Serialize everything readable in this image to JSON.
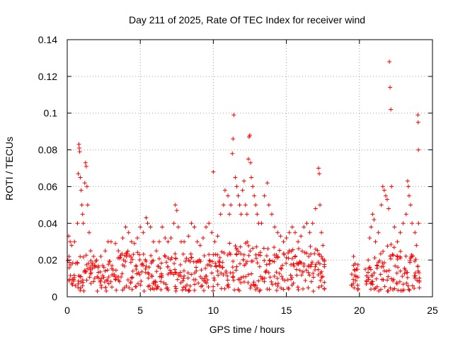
{
  "chart_data": {
    "type": "scatter",
    "title": "Day 211 of 2025, Rate Of TEC Index for receiver wind",
    "xlabel": "GPS time / hours",
    "ylabel": "ROTI / TECUs",
    "xlim": [
      0,
      25
    ],
    "ylim": [
      0,
      0.14
    ],
    "xticks": [
      0,
      5,
      10,
      15,
      20,
      25
    ],
    "xtick_labels": [
      "0",
      "5",
      "10",
      "15",
      "20",
      "25"
    ],
    "yticks": [
      0,
      0.02,
      0.04,
      0.06,
      0.08,
      0.1,
      0.12,
      0.14
    ],
    "ytick_labels": [
      "0",
      "0.02",
      "0.04",
      "0.06",
      "0.08",
      "0.1",
      "0.12",
      "0.14"
    ],
    "grid": true,
    "marker": "plus",
    "color": "#ff0000",
    "series": [
      {
        "points": [
          [
            0.1,
            0.033
          ],
          [
            0.2,
            0.03
          ],
          [
            0.3,
            0.028
          ],
          [
            0.5,
            0.03
          ],
          [
            0.7,
            0.04
          ],
          [
            0.75,
            0.067
          ],
          [
            0.8,
            0.083
          ],
          [
            0.82,
            0.081
          ],
          [
            0.85,
            0.079
          ],
          [
            0.9,
            0.065
          ],
          [
            0.95,
            0.058
          ],
          [
            1.0,
            0.05
          ],
          [
            1.05,
            0.045
          ],
          [
            1.1,
            0.04
          ],
          [
            1.2,
            0.062
          ],
          [
            1.25,
            0.073
          ],
          [
            1.3,
            0.071
          ],
          [
            1.35,
            0.06
          ],
          [
            1.4,
            0.05
          ],
          [
            1.5,
            0.035
          ],
          [
            1.6,
            0.025
          ],
          [
            1.8,
            0.022
          ],
          [
            2.0,
            0.02
          ],
          [
            2.3,
            0.022
          ],
          [
            2.6,
            0.025
          ],
          [
            2.8,
            0.03
          ],
          [
            3.0,
            0.03
          ],
          [
            3.3,
            0.029
          ],
          [
            3.5,
            0.025
          ],
          [
            3.8,
            0.032
          ],
          [
            4.0,
            0.038
          ],
          [
            4.2,
            0.035
          ],
          [
            4.4,
            0.03
          ],
          [
            4.6,
            0.029
          ],
          [
            4.8,
            0.032
          ],
          [
            5.0,
            0.038
          ],
          [
            5.2,
            0.035
          ],
          [
            5.4,
            0.043
          ],
          [
            5.5,
            0.04
          ],
          [
            5.7,
            0.038
          ],
          [
            5.9,
            0.03
          ],
          [
            6.1,
            0.025
          ],
          [
            6.3,
            0.03
          ],
          [
            6.5,
            0.038
          ],
          [
            6.7,
            0.032
          ],
          [
            6.9,
            0.03
          ],
          [
            7.1,
            0.032
          ],
          [
            7.3,
            0.04
          ],
          [
            7.4,
            0.05
          ],
          [
            7.5,
            0.047
          ],
          [
            7.6,
            0.038
          ],
          [
            7.8,
            0.03
          ],
          [
            8.0,
            0.03
          ],
          [
            8.3,
            0.033
          ],
          [
            8.5,
            0.04
          ],
          [
            8.7,
            0.038
          ],
          [
            8.9,
            0.03
          ],
          [
            9.1,
            0.028
          ],
          [
            9.3,
            0.032
          ],
          [
            9.5,
            0.038
          ],
          [
            9.7,
            0.04
          ],
          [
            9.9,
            0.035
          ],
          [
            10.0,
            0.068
          ],
          [
            10.1,
            0.03
          ],
          [
            10.3,
            0.033
          ],
          [
            10.5,
            0.045
          ],
          [
            10.7,
            0.05
          ],
          [
            10.8,
            0.058
          ],
          [
            11.0,
            0.055
          ],
          [
            11.1,
            0.045
          ],
          [
            11.2,
            0.05
          ],
          [
            11.3,
            0.078
          ],
          [
            11.35,
            0.086
          ],
          [
            11.4,
            0.099
          ],
          [
            11.5,
            0.065
          ],
          [
            11.6,
            0.06
          ],
          [
            11.7,
            0.055
          ],
          [
            11.8,
            0.05
          ],
          [
            11.9,
            0.045
          ],
          [
            12.0,
            0.058
          ],
          [
            12.1,
            0.063
          ],
          [
            12.2,
            0.05
          ],
          [
            12.3,
            0.045
          ],
          [
            12.4,
            0.075
          ],
          [
            12.45,
            0.087
          ],
          [
            12.5,
            0.088
          ],
          [
            12.55,
            0.073
          ],
          [
            12.6,
            0.065
          ],
          [
            12.7,
            0.06
          ],
          [
            12.8,
            0.055
          ],
          [
            12.9,
            0.05
          ],
          [
            13.0,
            0.045
          ],
          [
            13.1,
            0.04
          ],
          [
            13.3,
            0.04
          ],
          [
            13.5,
            0.055
          ],
          [
            13.7,
            0.062
          ],
          [
            13.8,
            0.05
          ],
          [
            14.0,
            0.045
          ],
          [
            14.2,
            0.038
          ],
          [
            14.4,
            0.035
          ],
          [
            14.6,
            0.033
          ],
          [
            14.8,
            0.03
          ],
          [
            15.0,
            0.032
          ],
          [
            15.2,
            0.035
          ],
          [
            15.4,
            0.038
          ],
          [
            15.6,
            0.035
          ],
          [
            15.8,
            0.03
          ],
          [
            16.0,
            0.033
          ],
          [
            16.2,
            0.038
          ],
          [
            16.4,
            0.04
          ],
          [
            16.6,
            0.035
          ],
          [
            16.8,
            0.04
          ],
          [
            17.0,
            0.048
          ],
          [
            17.2,
            0.07
          ],
          [
            17.25,
            0.067
          ],
          [
            17.3,
            0.05
          ],
          [
            17.4,
            0.035
          ],
          [
            17.5,
            0.028
          ],
          [
            17.6,
            0.02
          ],
          [
            19.6,
            0.022
          ],
          [
            19.7,
            0.018
          ],
          [
            19.8,
            0.015
          ],
          [
            20.4,
            0.015
          ],
          [
            20.6,
            0.02
          ],
          [
            20.7,
            0.032
          ],
          [
            20.8,
            0.038
          ],
          [
            20.9,
            0.045
          ],
          [
            21.0,
            0.042
          ],
          [
            21.1,
            0.03
          ],
          [
            21.3,
            0.035
          ],
          [
            21.5,
            0.05
          ],
          [
            21.6,
            0.06
          ],
          [
            21.7,
            0.058
          ],
          [
            21.8,
            0.055
          ],
          [
            21.9,
            0.053
          ],
          [
            22.0,
            0.048
          ],
          [
            22.05,
            0.128
          ],
          [
            22.1,
            0.114
          ],
          [
            22.15,
            0.102
          ],
          [
            22.2,
            0.06
          ],
          [
            22.4,
            0.038
          ],
          [
            22.6,
            0.03
          ],
          [
            22.8,
            0.035
          ],
          [
            23.0,
            0.04
          ],
          [
            23.2,
            0.045
          ],
          [
            23.3,
            0.063
          ],
          [
            23.35,
            0.06
          ],
          [
            23.4,
            0.055
          ],
          [
            23.5,
            0.05
          ],
          [
            23.6,
            0.04
          ],
          [
            23.8,
            0.035
          ],
          [
            23.9,
            0.028
          ],
          [
            24.0,
            0.099
          ],
          [
            24.02,
            0.095
          ],
          [
            24.04,
            0.08
          ],
          [
            24.05,
            0.04
          ]
        ],
        "envelope": {
          "bin_hours": 0.2,
          "segments": [
            {
              "from": 0.0,
              "to": 17.6
            },
            {
              "from": 19.4,
              "to": 19.9
            },
            {
              "from": 20.4,
              "to": 20.9
            },
            {
              "from": 21.0,
              "to": 24.1
            }
          ],
          "upper": [
            [
              0.0,
              0.022
            ],
            [
              0.5,
              0.02
            ],
            [
              1.0,
              0.025
            ],
            [
              2.0,
              0.018
            ],
            [
              3.0,
              0.02
            ],
            [
              4.0,
              0.026
            ],
            [
              5.0,
              0.024
            ],
            [
              6.0,
              0.022
            ],
            [
              7.0,
              0.024
            ],
            [
              8.0,
              0.025
            ],
            [
              9.0,
              0.022
            ],
            [
              10.0,
              0.024
            ],
            [
              11.0,
              0.03
            ],
            [
              12.0,
              0.032
            ],
            [
              13.0,
              0.03
            ],
            [
              14.0,
              0.028
            ],
            [
              15.0,
              0.026
            ],
            [
              16.0,
              0.027
            ],
            [
              17.0,
              0.03
            ],
            [
              17.6,
              0.02
            ],
            [
              19.4,
              0.018
            ],
            [
              19.9,
              0.02
            ],
            [
              20.4,
              0.016
            ],
            [
              20.9,
              0.02
            ],
            [
              21.0,
              0.022
            ],
            [
              22.0,
              0.03
            ],
            [
              23.0,
              0.025
            ],
            [
              24.1,
              0.02
            ]
          ],
          "lower": 0.003
        }
      }
    ]
  }
}
